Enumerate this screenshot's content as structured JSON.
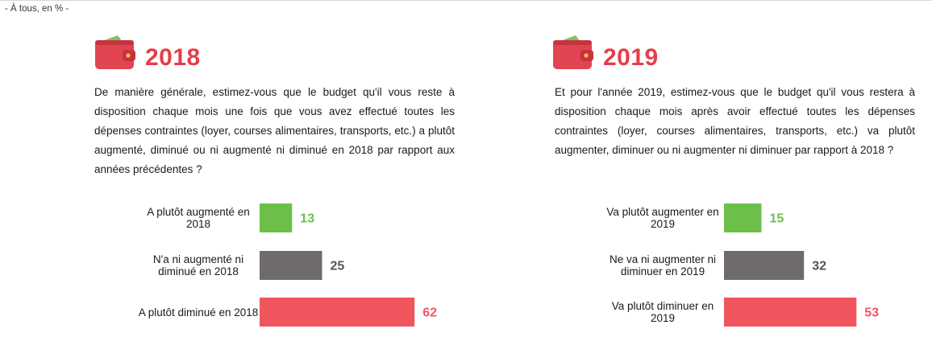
{
  "subtitle": "- À tous, en % -",
  "colors": {
    "up": "#6cc04a",
    "neutral": "#6f6b6b",
    "down": "#f0555d",
    "year": "#e63e4a"
  },
  "icons": {
    "wallet": "wallet-icon"
  },
  "chart_data": [
    {
      "type": "bar",
      "orientation": "horizontal",
      "title": "2018",
      "question": "De manière générale, estimez-vous que le budget qu'il vous reste à disposition chaque mois une fois que vous avez effectué toutes les dépenses contraintes (loyer, courses alimentaires, transports, etc.) a plutôt augmenté, diminué ou ni augmenté ni diminué en 2018 par rapport aux années précédentes ?",
      "categories": [
        [
          "A plutôt augmenté en",
          "2018"
        ],
        [
          "N'a ni augmenté ni",
          "diminué en 2018"
        ],
        [
          "A plutôt diminué en 2018"
        ]
      ],
      "values": [
        13,
        25,
        62
      ],
      "unit": "%"
    },
    {
      "type": "bar",
      "orientation": "horizontal",
      "title": "2019",
      "question": "Et pour l'année 2019, estimez-vous que le budget qu'il vous restera à disposition chaque mois après avoir effectué toutes les dépenses contraintes (loyer, courses alimentaires, transports, etc.) va plutôt augmenter, diminuer ou ni augmenter ni diminuer par rapport à 2018 ?",
      "categories": [
        [
          "Va plutôt augmenter en",
          "2019"
        ],
        [
          "Ne va ni augmenter ni",
          "diminuer en 2019"
        ],
        [
          "Va plutôt diminuer en",
          "2019"
        ]
      ],
      "values": [
        15,
        32,
        53
      ],
      "unit": "%"
    }
  ]
}
